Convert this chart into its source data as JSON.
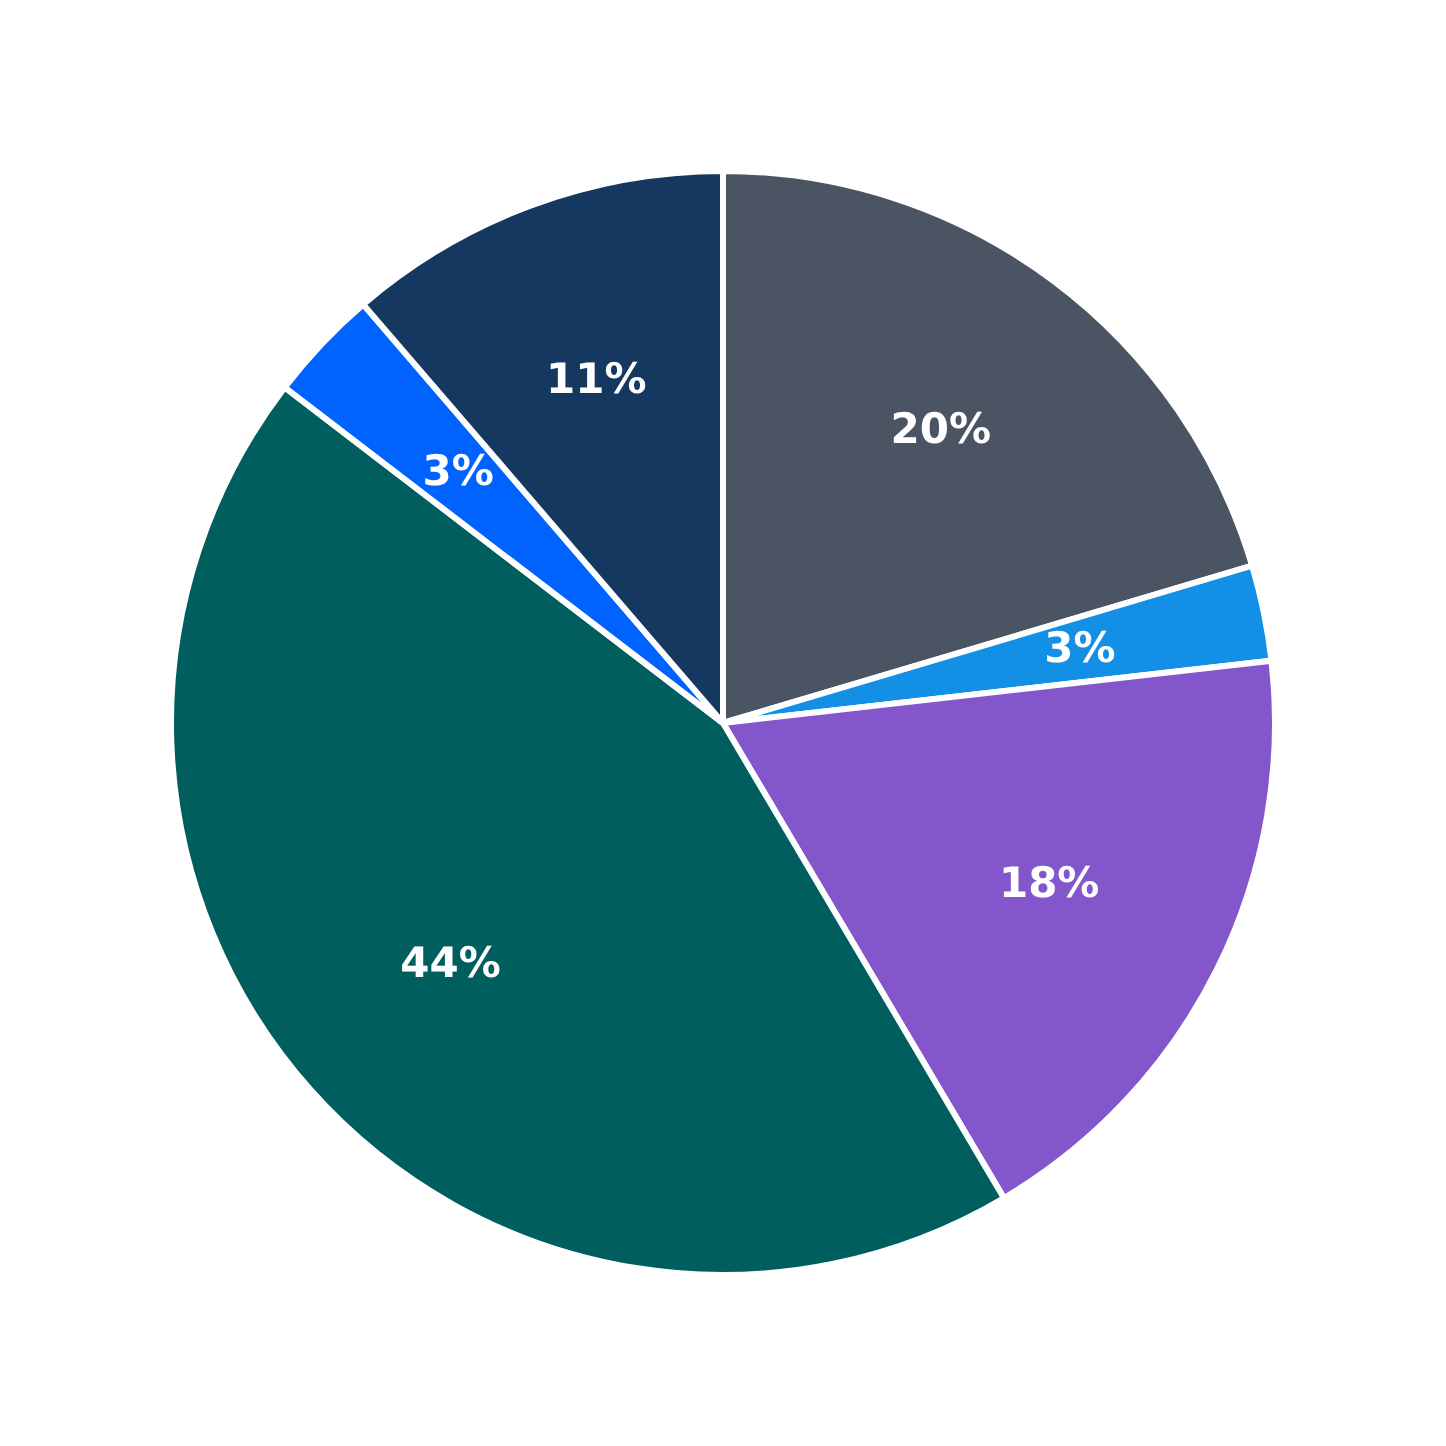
{
  "chart_data": {
    "type": "pie",
    "categories": [
      null,
      null,
      null,
      null,
      null,
      null
    ],
    "values": [
      20.4,
      2.8,
      18.3,
      43.9,
      3.3,
      11.3
    ],
    "colors": [
      "#4a5462",
      "#1390e6",
      "#8456cc",
      "#005e5e",
      "#0062ff",
      "#14385f"
    ],
    "value_labels": [
      "20%",
      "3%",
      "18%",
      "44%",
      "3%",
      "11%"
    ],
    "legend": false
  }
}
